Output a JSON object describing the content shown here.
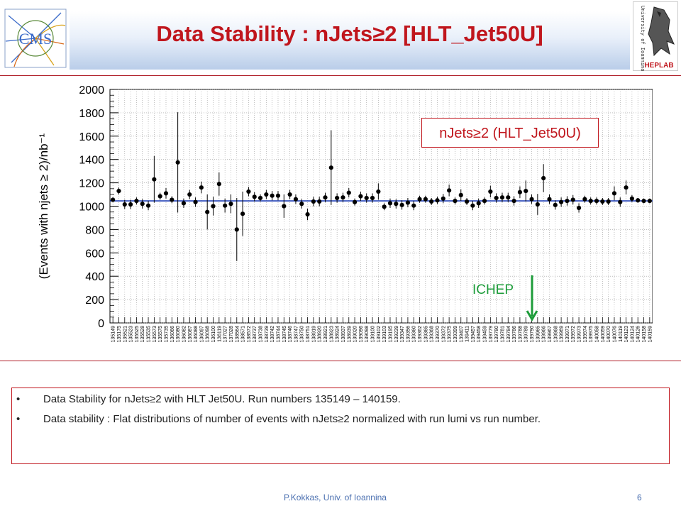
{
  "slide": {
    "title": "Data Stability : nJets≥2 [HLT_Jet50U]",
    "legend_label": "nJets≥2 (HLT_Jet50U)",
    "marker_label": "ICHEP",
    "bullets": [
      "Data Stability for nJets≥2 with HLT Jet50U. Run numbers 135149 – 140159.",
      "Data stability : Flat distributions of number of events with nJets≥2 normalized with run lumi vs run number."
    ],
    "footer_left": "P.Kokkas, Univ. of Ioannina",
    "page_number": "6",
    "logo_left_text": "CMS",
    "logo_right_text": "HEPLAB",
    "logo_right_vertical": "University of Ioannina"
  },
  "colors": {
    "title": "#c0161d",
    "fit_line": "#1f3fb5",
    "marker_arrow": "#1d9c3a",
    "footer": "#4a6fb0"
  },
  "chart_data": {
    "type": "scatter",
    "ylabel": "(Events with njets ≥ 2)/nb⁻¹",
    "xlabel": "",
    "ylim": [
      0,
      2000
    ],
    "yticks": [
      0,
      200,
      400,
      600,
      800,
      1000,
      1200,
      1400,
      1600,
      1800,
      2000
    ],
    "fit_value": 1045,
    "marker_run": "139789",
    "categories": [
      "135149",
      "135175",
      "135521",
      "135523",
      "135525",
      "135528",
      "135535",
      "135573",
      "135575",
      "135735",
      "136066",
      "136080",
      "136082",
      "136087",
      "136088",
      "136097",
      "136098",
      "136100",
      "136119",
      "137027",
      "137028",
      "138564",
      "138571",
      "138572",
      "138737",
      "138738",
      "138739",
      "138742",
      "138744",
      "138745",
      "138746",
      "138747",
      "138750",
      "138751",
      "138919",
      "138920",
      "138921",
      "138923",
      "138924",
      "138937",
      "138939",
      "139020",
      "139096",
      "139098",
      "139100",
      "139102",
      "139103",
      "139195",
      "139239",
      "139347",
      "139356",
      "139360",
      "139362",
      "139365",
      "139368",
      "139370",
      "139372",
      "139375",
      "139399",
      "139407",
      "139411",
      "139457",
      "139458",
      "139459",
      "139779",
      "139780",
      "139781",
      "139784",
      "139786",
      "139788",
      "139789",
      "139790",
      "139965",
      "139966",
      "139967",
      "139968",
      "139969",
      "139971",
      "139972",
      "139973",
      "139974",
      "139975",
      "140058",
      "140059",
      "140070",
      "140076",
      "140119",
      "140123",
      "140124",
      "140126",
      "140158",
      "140159"
    ],
    "values": [
      1055,
      1130,
      1015,
      1015,
      1045,
      1020,
      1005,
      1230,
      1085,
      1110,
      1055,
      1375,
      1025,
      1100,
      1035,
      1160,
      950,
      1000,
      1190,
      1005,
      1020,
      800,
      935,
      1125,
      1080,
      1070,
      1100,
      1090,
      1090,
      1000,
      1100,
      1060,
      1020,
      930,
      1040,
      1040,
      1075,
      1330,
      1070,
      1075,
      1115,
      1035,
      1085,
      1070,
      1070,
      1125,
      995,
      1025,
      1020,
      1010,
      1030,
      1005,
      1060,
      1060,
      1040,
      1050,
      1065,
      1135,
      1045,
      1095,
      1040,
      1005,
      1025,
      1045,
      1125,
      1070,
      1075,
      1075,
      1045,
      1120,
      1130,
      1060,
      1015,
      1240,
      1060,
      1010,
      1035,
      1045,
      1055,
      985,
      1060,
      1045,
      1045,
      1040,
      1040,
      1110,
      1035,
      1160,
      1065,
      1050,
      1045,
      1045
    ],
    "errors": [
      20,
      30,
      40,
      40,
      30,
      40,
      40,
      200,
      30,
      45,
      30,
      430,
      40,
      40,
      40,
      50,
      150,
      80,
      100,
      60,
      80,
      270,
      190,
      40,
      40,
      30,
      40,
      40,
      40,
      100,
      40,
      40,
      40,
      50,
      40,
      40,
      40,
      320,
      40,
      40,
      40,
      30,
      40,
      40,
      40,
      70,
      30,
      40,
      40,
      40,
      40,
      40,
      30,
      30,
      30,
      30,
      40,
      50,
      30,
      50,
      30,
      40,
      40,
      30,
      50,
      40,
      40,
      40,
      40,
      50,
      90,
      40,
      90,
      120,
      40,
      40,
      40,
      40,
      40,
      40,
      30,
      30,
      30,
      30,
      30,
      60,
      40,
      60,
      30,
      20,
      20,
      20
    ],
    "grid": true
  }
}
